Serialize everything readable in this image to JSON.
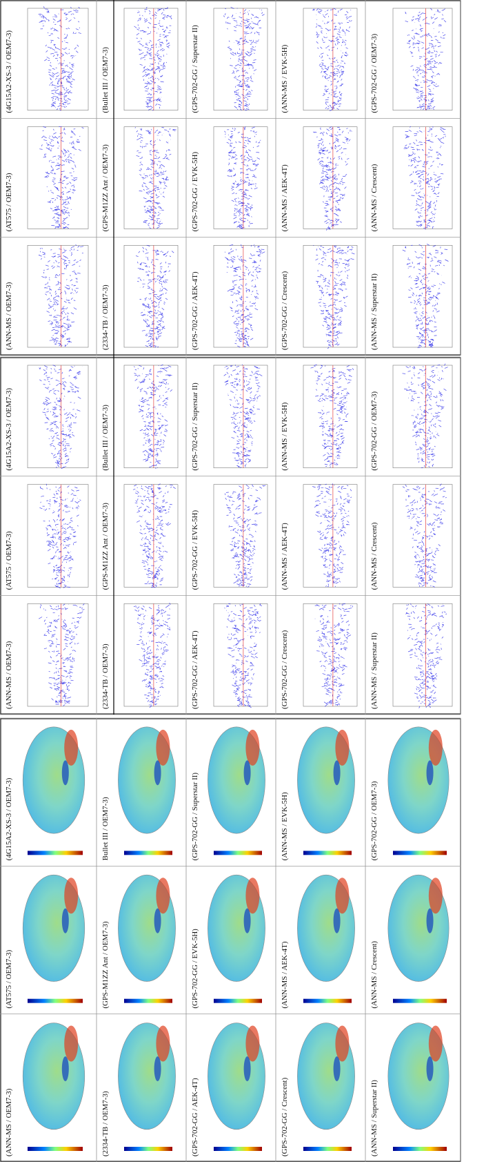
{
  "panels": [
    {
      "labels": [
        [
          "(4G15A2-XS-3 / OEM7-3)",
          "(AT575 / OEM7-3)",
          "(ANN-MS / OEM7-3)"
        ],
        [
          "(Bullet III / OEM7-3)",
          "(GPS-M1ZZ Ant / OEM7-3)",
          "(2334-TB / OEM7-3)"
        ],
        [
          "(GPS-702-GG / Superstar II)",
          "(GPS-702-GG / EVK-5H)",
          "(GPS-702-GG / AEK-4T)"
        ],
        [
          "(ANN-MS / EVK-5H)",
          "(ANN-MS / AEK-4T)",
          "(GPS-702-GG / Crescent)"
        ],
        [
          "(GPS-702-GG / OEM7-3)",
          "(ANN-MS / Crescent)",
          "(ANN-MS / Superstar II)"
        ]
      ]
    },
    {
      "labels": [
        [
          "(4G15A2-XS-3 / OEM7-3)",
          "(AT575 / OEM7-3)",
          "(ANN-MS / OEM7-3)"
        ],
        [
          "(Bullet III / OEM7-3)",
          "(GPS-M1ZZ Ant / OEM7-3)",
          "(2334-TB / OEM7-3)"
        ],
        [
          "(GPS-702-GG / Superstar II)",
          "(GPS-702-GG / EVK-5H)",
          "(GPS-702-GG / AEK-4T)"
        ],
        [
          "(ANN-MS / EVK-5H)",
          "(ANN-MS / AEK-4T)",
          "(GPS-702-GG / Crescent)"
        ],
        [
          "(GPS-702-GG / OEM7-3)",
          "(ANN-MS / Crescent)",
          "(ANN-MS / Superstar II)"
        ]
      ]
    },
    {
      "labels": [
        [
          "(4G15A2-XS-3 / OEM7-3)",
          "(AT575 / OEM7-3)",
          "(ANN-MS / OEM7-3)"
        ],
        [
          "Bullet III / OEM7-3)",
          "(GPS-M1ZZ Ant / OEM7-3)",
          "(2334-TB / OEM7-3)"
        ],
        [
          "(GPS-702-GG / Superstar II)",
          "(GPS-702-GG / EVK-5H)",
          "(GPS-702-GG / AEK-4T)"
        ],
        [
          "(ANN-MS / EVK-5H)",
          "(ANN-MS / AEK-4T)",
          "(GPS-702-GG / Crescent)"
        ],
        [
          "(GPS-702-GG / OEM7-3)",
          "(ANN-MS / Crescent)",
          "(ANN-MS / Superstar II)"
        ]
      ]
    }
  ]
}
